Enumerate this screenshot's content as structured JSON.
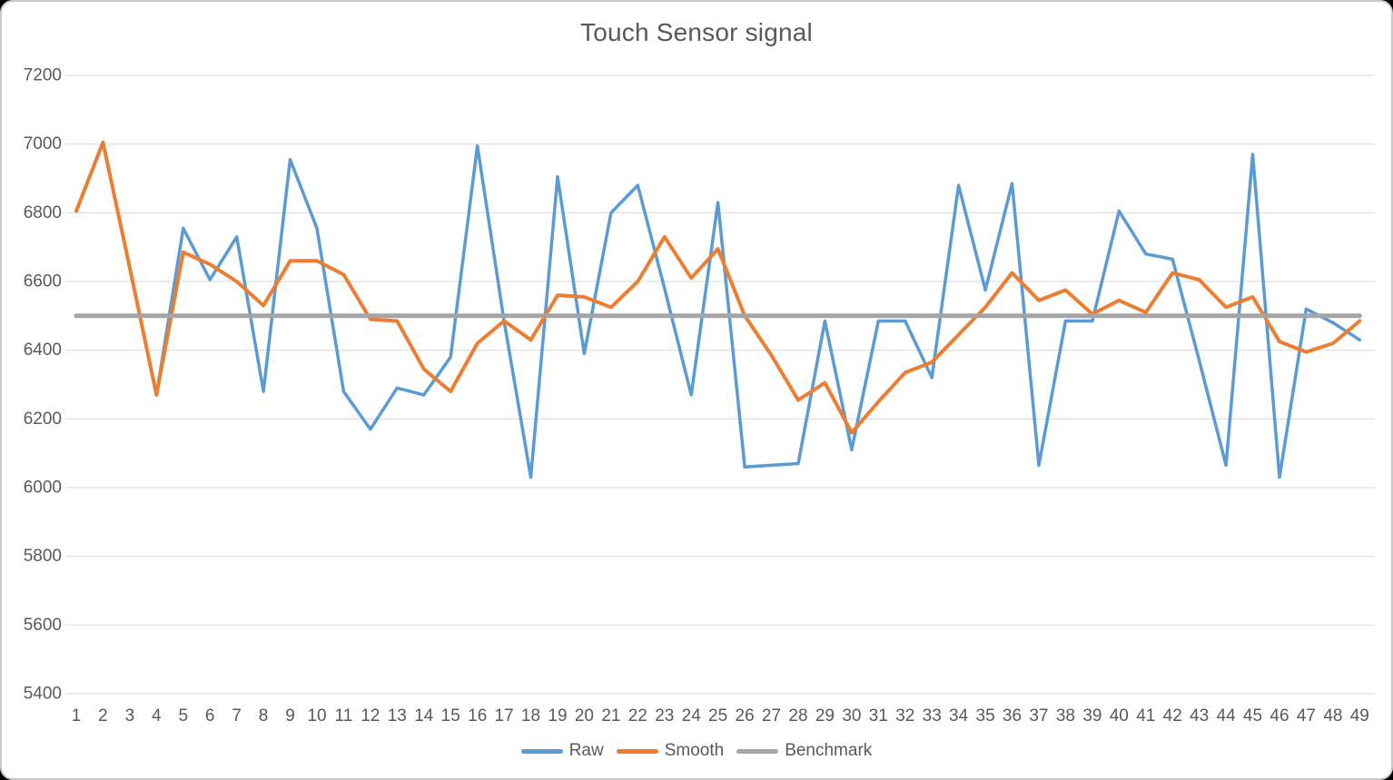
{
  "title": "Touch Sensor signal",
  "colors": {
    "raw": "#5B9BD5",
    "smooth": "#ED7D31",
    "benchmark": "#A5A5A5",
    "gridline": "#D9D9D9",
    "axis_text": "#595959",
    "title_text": "#595959"
  },
  "chart_data": {
    "type": "line",
    "title": "Touch Sensor signal",
    "categories": [
      "1",
      "2",
      "3",
      "4",
      "5",
      "6",
      "7",
      "8",
      "9",
      "10",
      "11",
      "12",
      "13",
      "14",
      "15",
      "16",
      "17",
      "18",
      "19",
      "20",
      "21",
      "22",
      "23",
      "24",
      "25",
      "26",
      "27",
      "28",
      "29",
      "30",
      "31",
      "32",
      "33",
      "34",
      "35",
      "36",
      "37",
      "38",
      "39",
      "40",
      "41",
      "42",
      "43",
      "44",
      "45",
      "46",
      "47",
      "48",
      "49"
    ],
    "series": [
      {
        "name": "Raw",
        "color": "#5B9BD5",
        "width": 3.5,
        "values": [
          6805,
          7005,
          6640,
          6270,
          6755,
          6605,
          6730,
          6280,
          6955,
          6755,
          6280,
          6170,
          6290,
          6270,
          6380,
          6995,
          6485,
          6030,
          6905,
          6390,
          6800,
          6880,
          6580,
          6270,
          6830,
          6060,
          6065,
          6070,
          6485,
          6110,
          6485,
          6485,
          6320,
          6880,
          6575,
          6885,
          6065,
          6485,
          6485,
          6805,
          6680,
          6665,
          6370,
          6065,
          6970,
          6030,
          6520,
          6480,
          6430
        ]
      },
      {
        "name": "Smooth",
        "color": "#ED7D31",
        "width": 4,
        "values": [
          6805,
          7005,
          6640,
          6270,
          6685,
          6650,
          6600,
          6530,
          6660,
          6660,
          6620,
          6490,
          6485,
          6345,
          6280,
          6420,
          6485,
          6430,
          6560,
          6555,
          6525,
          6600,
          6730,
          6610,
          6695,
          6500,
          6385,
          6255,
          6305,
          6160,
          6250,
          6335,
          6365,
          6445,
          6525,
          6625,
          6545,
          6575,
          6505,
          6545,
          6510,
          6625,
          6605,
          6525,
          6555,
          6425,
          6395,
          6420,
          6485
        ]
      },
      {
        "name": "Benchmark",
        "color": "#A5A5A5",
        "width": 5,
        "constant": 6500
      }
    ],
    "ylim": [
      5400,
      7200
    ],
    "ytick_step": 200,
    "yticks": [
      7200,
      7000,
      6800,
      6600,
      6400,
      6200,
      6000,
      5800,
      5600,
      5400
    ],
    "grid": "horizontal",
    "legend_position": "bottom",
    "legend_labels": [
      "Raw",
      "Smooth",
      "Benchmark"
    ]
  }
}
